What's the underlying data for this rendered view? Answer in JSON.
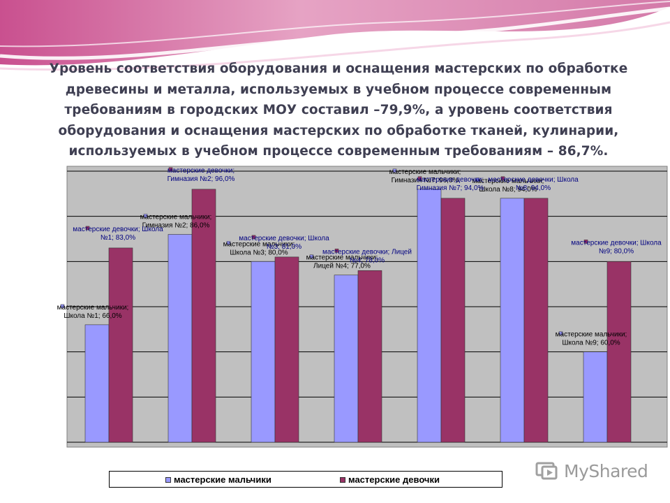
{
  "slide": {
    "headline": "Уровень соответствия оборудования и оснащения мастерских по обработке древесины и металла, используемых в учебном процессе современным требованиям в городских МОУ составил –79,9%, а уровень соответствия оборудования и оснащения мастерских по обработке тканей, кулинарии, используемых в учебном процессе современным требованиям – 86,7%."
  },
  "watermark": {
    "text": "MyShared"
  },
  "colors": {
    "boys": "#9999ff",
    "girls": "#993366",
    "plot_bg": "#c0c0c0",
    "label_boys": "#000000",
    "label_girls": "#000080"
  },
  "chart_data": {
    "type": "bar",
    "categories": [
      "Школа №1",
      "Гимназия №2",
      "Школа №3",
      "Лицей №4",
      "Гимназия №7",
      "Школа №8",
      "Школа №9"
    ],
    "series": [
      {
        "name": "мастерские мальчики",
        "values": [
          66,
          86,
          80,
          77,
          96,
          94,
          60
        ]
      },
      {
        "name": "мастерские девочки",
        "values": [
          83,
          96,
          81,
          78,
          94,
          94,
          80
        ]
      }
    ],
    "data_labels": {
      "boys": [
        [
          "мастерские мальчики;",
          "Школа №1; 66,0%"
        ],
        [
          "мастерские мальчики;",
          "Гимназия №2; 86,0%"
        ],
        [
          "мастерские мальчики;",
          "Школа №3; 80,0%"
        ],
        [
          "мастерские мальчики;",
          "Лицей №4; 77,0%"
        ],
        [
          "мастерские мальчики;",
          "Гимназия №7; 96,0%"
        ],
        [
          "мастерские мальчики;",
          "Школа №8; 94,0%"
        ],
        [
          "мастерские мальчики;",
          "Школа №9; 60,0%"
        ]
      ],
      "girls": [
        [
          "мастерские девочки; Школа",
          "№1; 83,0%"
        ],
        [
          "мастерские девочки;",
          "Гимназия №2; 96,0%"
        ],
        [
          "мастерские девочки; Школа",
          "№3; 81,0%"
        ],
        [
          "мастерские девочки; Лицей",
          "№4; 78,0%"
        ],
        [
          "мастерские девочки;",
          "Гимназия №7; 94,0%"
        ],
        [
          "мастерские девочки; Школа",
          "№8; 94,0%"
        ],
        [
          "мастерские девочки; Школа",
          "№9; 80,0%"
        ]
      ]
    },
    "ylim": [
      40,
      100
    ],
    "ygrid_step": 10,
    "grid": true,
    "legend_position": "bottom"
  }
}
